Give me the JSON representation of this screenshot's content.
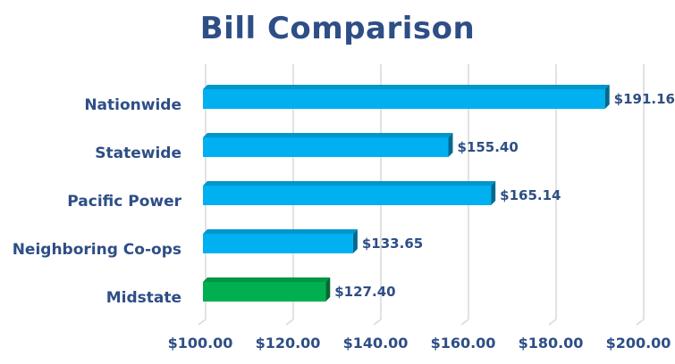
{
  "chart_data": {
    "type": "bar",
    "orientation": "horizontal",
    "title": "Bill Comparison",
    "xlabel": "",
    "ylabel": "",
    "xlim": [
      100,
      200
    ],
    "tick_values": [
      100,
      120,
      140,
      160,
      180,
      200
    ],
    "tick_labels": [
      "$100.00",
      "$120.00",
      "$140.00",
      "$160.00",
      "$180.00",
      "$200.00"
    ],
    "grid": "vertical",
    "legend": "none",
    "categories": [
      "Nationwide",
      "Statewide",
      "Pacific Power",
      "Neighboring Co-ops",
      "Midstate"
    ],
    "values": [
      191.16,
      155.4,
      165.14,
      133.65,
      127.4
    ],
    "data_labels": [
      "$191.16",
      "$155.40",
      "$165.14",
      "$133.65",
      "$127.40"
    ],
    "colors": [
      "#00b0f0",
      "#00b0f0",
      "#00b0f0",
      "#00b0f0",
      "#00b050"
    ]
  }
}
